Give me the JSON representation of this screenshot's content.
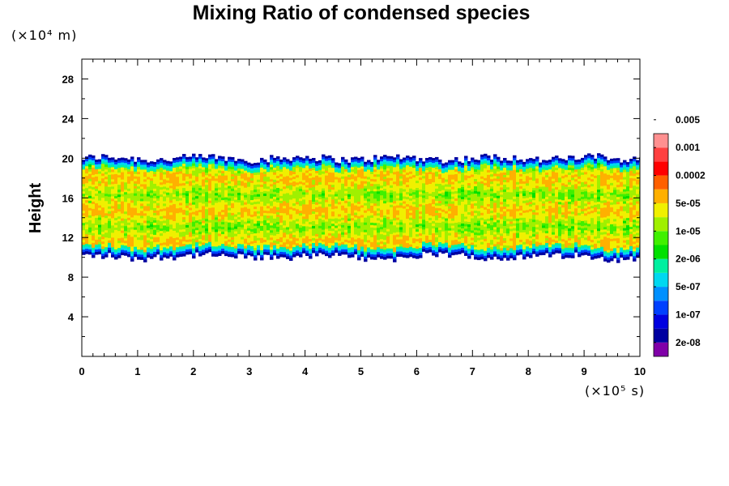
{
  "chart_data": {
    "type": "heatmap",
    "title": "Mixing Ratio of condensed species",
    "xlabel": "",
    "ylabel": "Height",
    "x_unit": "(×10⁵ s)",
    "y_unit": "(×10⁴ m)",
    "xlim": [
      0,
      10
    ],
    "ylim": [
      0,
      30
    ],
    "x_ticks": [
      0,
      1,
      2,
      3,
      4,
      5,
      6,
      7,
      8,
      9,
      10
    ],
    "y_ticks": [
      4,
      8,
      12,
      16,
      20,
      24,
      28
    ],
    "field": {
      "x_range": [
        0,
        10
      ],
      "bottom_height": 10.2,
      "top_height": 20.0,
      "peak_levels": [
        11.5,
        14.8,
        18.0
      ]
    },
    "colorbar": {
      "colors": [
        "#8000a8",
        "#0000a0",
        "#0000e0",
        "#0040ff",
        "#0090ff",
        "#00d8f0",
        "#00f0a0",
        "#00e000",
        "#40f000",
        "#a0f000",
        "#f0f000",
        "#ffb000",
        "#ff6000",
        "#ff0000",
        "#ff4040",
        "#ff9090"
      ],
      "labels": [
        "2e-08",
        "1e-07",
        "5e-07",
        "2e-06",
        "1e-05",
        "5e-05",
        "0.0002",
        "0.001",
        "0.005"
      ]
    }
  }
}
